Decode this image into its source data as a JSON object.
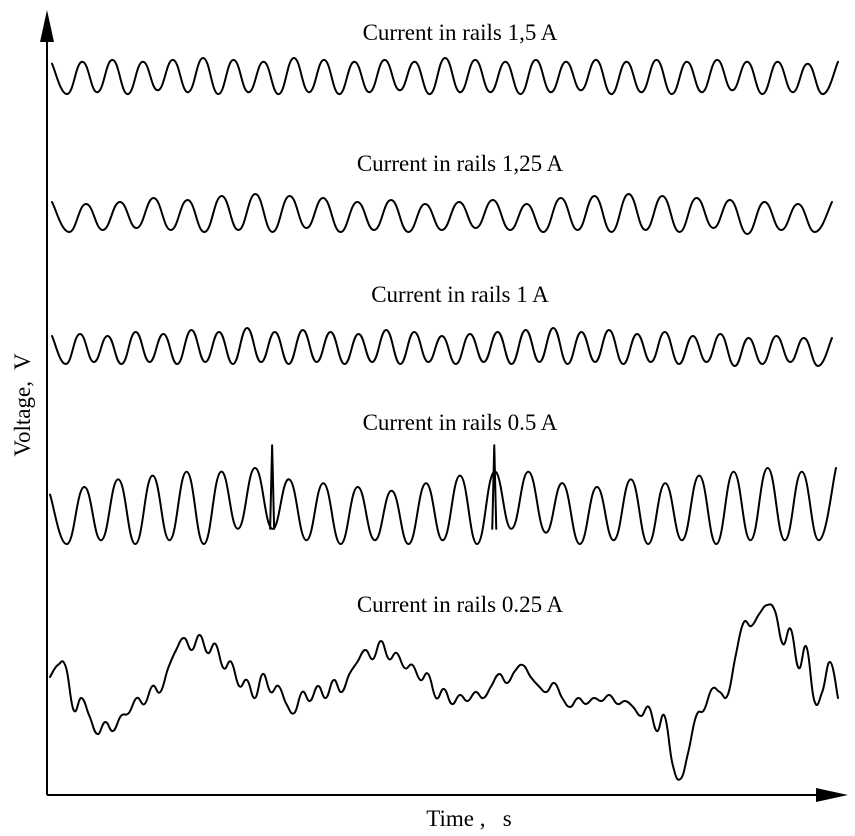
{
  "chart_data": {
    "type": "line",
    "xlabel": "Time ,   s",
    "ylabel": "Voltage,  V",
    "grid": false,
    "legend": "none",
    "series": [
      {
        "name": "Current in rails 1,5 A",
        "shape": "dense regular oscillation, ~26 cycles, moderate amplitude",
        "x": [
          0,
          1,
          2,
          3,
          4,
          5,
          6,
          7,
          8,
          9,
          10,
          11,
          12,
          13,
          14,
          15,
          16,
          17,
          18,
          19,
          20,
          21,
          22,
          23,
          24,
          25,
          26,
          27,
          28,
          29,
          30,
          31,
          32,
          33,
          34,
          35,
          36,
          37,
          38,
          39,
          40,
          41,
          42,
          43,
          44,
          45,
          46,
          47,
          48,
          49,
          50,
          51,
          52
        ],
        "values": [
          0.7,
          -0.9,
          0.8,
          -0.8,
          0.9,
          -0.9,
          0.8,
          -0.7,
          0.9,
          -0.8,
          1.0,
          -0.9,
          0.9,
          -0.8,
          0.8,
          -0.9,
          1.0,
          -0.8,
          0.9,
          -0.9,
          0.8,
          -0.8,
          0.9,
          -0.7,
          0.8,
          -0.9,
          1.0,
          -0.8,
          0.9,
          -0.8,
          0.8,
          -0.9,
          0.9,
          -0.8,
          0.8,
          -0.7,
          0.9,
          -0.9,
          0.8,
          -0.8,
          0.9,
          -0.9,
          0.8,
          -0.8,
          0.9,
          -0.7,
          0.8,
          -0.9,
          0.8,
          -0.8,
          0.7,
          -0.9,
          0.8
        ]
      },
      {
        "name": "Current in rails 1,25 A",
        "shape": "regular oscillation, ~23 cycles, moderate amplitude",
        "x": [
          0,
          1,
          2,
          3,
          4,
          5,
          6,
          7,
          8,
          9,
          10,
          11,
          12,
          13,
          14,
          15,
          16,
          17,
          18,
          19,
          20,
          21,
          22,
          23,
          24,
          25,
          26,
          27,
          28,
          29,
          30,
          31,
          32,
          33,
          34,
          35,
          36,
          37,
          38,
          39,
          40,
          41,
          42,
          43,
          44,
          45,
          46
        ],
        "values": [
          0.6,
          -0.9,
          0.5,
          -0.8,
          0.6,
          -0.7,
          0.8,
          -0.8,
          0.7,
          -0.9,
          0.9,
          -0.8,
          1.0,
          -0.9,
          0.9,
          -0.7,
          0.8,
          -0.9,
          0.6,
          -0.8,
          0.7,
          -0.9,
          0.5,
          -0.8,
          0.6,
          -0.7,
          0.7,
          -0.8,
          0.5,
          -0.9,
          0.8,
          -0.8,
          0.9,
          -0.9,
          1.0,
          -0.8,
          0.9,
          -0.9,
          0.8,
          -0.7,
          0.7,
          -1.0,
          0.6,
          -0.8,
          0.5,
          -0.9,
          0.6
        ]
      },
      {
        "name": "Current in rails 1 A",
        "shape": "dense oscillation, ~28 cycles, moderate amplitude",
        "x": [
          0,
          1,
          2,
          3,
          4,
          5,
          6,
          7,
          8,
          9,
          10,
          11,
          12,
          13,
          14,
          15,
          16,
          17,
          18,
          19,
          20,
          21,
          22,
          23,
          24,
          25,
          26,
          27,
          28,
          29,
          30,
          31,
          32,
          33,
          34,
          35,
          36,
          37,
          38,
          39,
          40,
          41,
          42,
          43,
          44,
          45,
          46,
          47,
          48,
          49,
          50,
          51,
          52,
          53,
          54,
          55,
          56
        ],
        "values": [
          0.6,
          -0.8,
          0.7,
          -0.7,
          0.6,
          -0.8,
          0.8,
          -0.7,
          0.7,
          -0.8,
          0.9,
          -0.7,
          0.8,
          -0.8,
          1.0,
          -0.7,
          0.8,
          -0.8,
          0.9,
          -0.7,
          0.8,
          -0.8,
          0.7,
          -0.7,
          0.9,
          -0.8,
          0.8,
          -0.7,
          0.6,
          -0.8,
          0.7,
          -0.7,
          0.8,
          -0.8,
          0.9,
          -0.7,
          1.0,
          -0.8,
          0.8,
          -0.7,
          0.9,
          -0.8,
          0.7,
          -0.7,
          0.8,
          -0.8,
          0.6,
          -0.7,
          0.7,
          -0.9,
          0.5,
          -0.8,
          0.6,
          -0.7,
          0.5,
          -0.9,
          0.5
        ]
      },
      {
        "name": "Current in rails 0.5 A",
        "shape": "large-amplitude oscillation, ~23 cycles, two sharp spikes",
        "x": [
          0,
          1,
          2,
          3,
          4,
          5,
          6,
          7,
          8,
          9,
          10,
          11,
          12,
          13,
          14,
          15,
          16,
          17,
          18,
          19,
          20,
          21,
          22,
          23,
          24,
          25,
          26,
          27,
          28,
          29,
          30,
          31,
          32,
          33,
          34,
          35,
          36,
          37,
          38,
          39,
          40,
          41,
          42,
          43,
          44,
          45,
          46
        ],
        "values": [
          0.3,
          -1.0,
          0.5,
          -0.9,
          0.7,
          -1.0,
          0.8,
          -0.9,
          0.9,
          -1.0,
          0.9,
          -0.6,
          1.0,
          -0.6,
          0.7,
          -0.9,
          0.6,
          -1.0,
          0.5,
          -0.9,
          0.4,
          -1.0,
          0.6,
          -0.9,
          0.8,
          -1.0,
          0.9,
          -0.6,
          0.9,
          -0.7,
          0.6,
          -1.0,
          0.5,
          -0.9,
          0.7,
          -1.0,
          0.6,
          -0.9,
          0.8,
          -1.0,
          0.9,
          -0.9,
          1.0,
          -0.9,
          0.9,
          -0.9,
          1.0
        ],
        "spikes": [
          {
            "x": 13,
            "value": 1.6
          },
          {
            "x": 26,
            "value": 1.6
          }
        ]
      },
      {
        "name": "Current in rails 0.25 A",
        "shape": "irregular low-frequency wandering signal with small ripples",
        "x": [
          0,
          1,
          2,
          3,
          4,
          5,
          6,
          7,
          8,
          9,
          10,
          11,
          12,
          13,
          14,
          15,
          16,
          17,
          18,
          19,
          20,
          21,
          22,
          23,
          24,
          25,
          26,
          27,
          28,
          29,
          30,
          31,
          32,
          33,
          34,
          35,
          36,
          37,
          38,
          39,
          40,
          41,
          42,
          43,
          44,
          45,
          46,
          47,
          48,
          49,
          50,
          51,
          52,
          53,
          54,
          55,
          56,
          57,
          58,
          59,
          60,
          61,
          62,
          63,
          64,
          65,
          66,
          67,
          68,
          69,
          70,
          71,
          72,
          73,
          74,
          75,
          76,
          77,
          78,
          79,
          80,
          81,
          82,
          83,
          84,
          85,
          86,
          87,
          88,
          89,
          90,
          91,
          92,
          93,
          94,
          95,
          96,
          97,
          98,
          99,
          100
        ],
        "values": [
          0.05,
          0.25,
          0.22,
          -0.5,
          -0.3,
          -0.6,
          -0.9,
          -0.7,
          -0.85,
          -0.6,
          -0.55,
          -0.3,
          -0.4,
          -0.1,
          -0.2,
          0.2,
          0.5,
          0.7,
          0.5,
          0.75,
          0.45,
          0.6,
          0.2,
          0.3,
          -0.1,
          0.0,
          -0.3,
          0.1,
          -0.2,
          -0.1,
          -0.4,
          -0.55,
          -0.2,
          -0.35,
          -0.1,
          -0.3,
          0.0,
          -0.2,
          0.1,
          0.3,
          0.5,
          0.35,
          0.65,
          0.35,
          0.45,
          0.2,
          0.25,
          0.0,
          0.1,
          -0.3,
          -0.15,
          -0.4,
          -0.25,
          -0.35,
          -0.2,
          -0.3,
          -0.1,
          0.1,
          -0.05,
          0.15,
          0.25,
          0.05,
          -0.1,
          -0.2,
          -0.05,
          -0.3,
          -0.45,
          -0.3,
          -0.4,
          -0.3,
          -0.35,
          -0.25,
          -0.4,
          -0.35,
          -0.45,
          -0.6,
          -0.45,
          -0.85,
          -0.6,
          -1.4,
          -1.65,
          -1.2,
          -0.6,
          -0.5,
          -0.15,
          -0.2,
          -0.25,
          0.4,
          0.95,
          0.9,
          1.1,
          1.25,
          1.15,
          0.6,
          0.85,
          0.2,
          0.55,
          -0.35,
          -0.2,
          0.3,
          -0.3
        ]
      }
    ]
  }
}
